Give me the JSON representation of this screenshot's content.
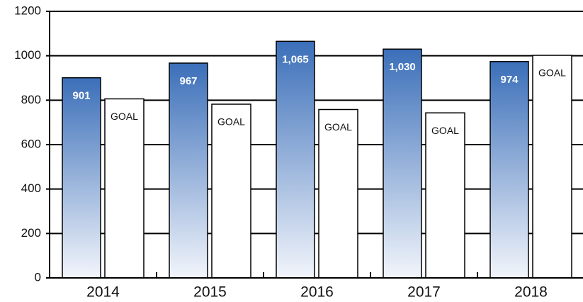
{
  "chart_data": {
    "type": "bar",
    "categories": [
      "2014",
      "2015",
      "2016",
      "2017",
      "2018"
    ],
    "series": [
      {
        "color": "#3b6fb9",
        "values": [
          901,
          967,
          1065,
          1030,
          974
        ],
        "value_labels": [
          "901",
          "967",
          "1,065",
          "1,030",
          "974"
        ]
      },
      {
        "name": "GOAL",
        "color": "#ffffff",
        "values": [
          806,
          782,
          758,
          743,
          1002
        ]
      }
    ],
    "ylim": [
      0,
      1200
    ],
    "yticks": [
      0,
      200,
      400,
      600,
      800,
      1000,
      1200
    ],
    "grid": true
  }
}
